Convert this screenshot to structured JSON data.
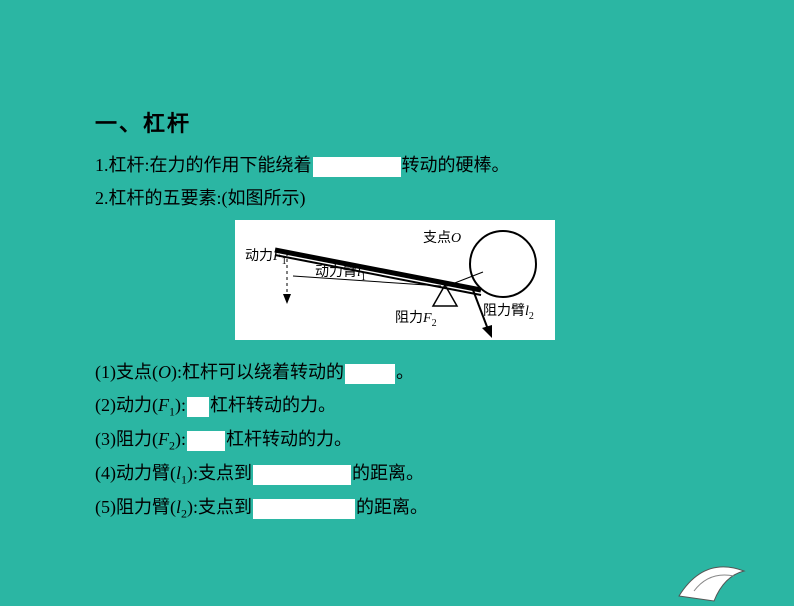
{
  "heading": "一、杠杆",
  "p1_a": "1.杠杆:在力的作用下能绕着",
  "p1_b": "转动的硬棒。",
  "p2": "2.杠杆的五要素:(如图所示)",
  "diagram": {
    "bg": "#ffffff",
    "stroke": "#000000",
    "label_fulcrum": "支点",
    "label_O": "O",
    "label_effort": "动力",
    "label_F1": "F",
    "label_effort_arm": "动力臂",
    "label_l1": "l",
    "label_load": "阻力",
    "label_F2": "F",
    "label_load_arm": "阻力臂",
    "label_l2": "l"
  },
  "i1_a": "(1)支点(",
  "i1_o": "O",
  "i1_b": "):杠杆可以绕着转动的",
  "i1_c": "。",
  "i2_a": "(2)动力(",
  "i2_f": "F",
  "i2_s": "1",
  "i2_b": "):",
  "i2_c": "杠杆转动的力。",
  "i3_a": "(3)阻力(",
  "i3_f": "F",
  "i3_s": "2",
  "i3_b": "):",
  "i3_c": "杠杆转动的力。",
  "i4_a": "(4)动力臂(",
  "i4_l": "l",
  "i4_s": "1",
  "i4_b": "):支点到",
  "i4_c": "的距离。",
  "i5_a": "(5)阻力臂(",
  "i5_l": "l",
  "i5_s": "2",
  "i5_b": "):支点到",
  "i5_c": "的距离。",
  "blanks": {
    "b1": 88,
    "b_i1": 50,
    "b_i2": 22,
    "b_i3": 38,
    "b_i4": 98,
    "b_i5": 102
  },
  "colors": {
    "bg": "#2bb6a3",
    "text": "#000000",
    "blank_bg": "#ffffff"
  }
}
